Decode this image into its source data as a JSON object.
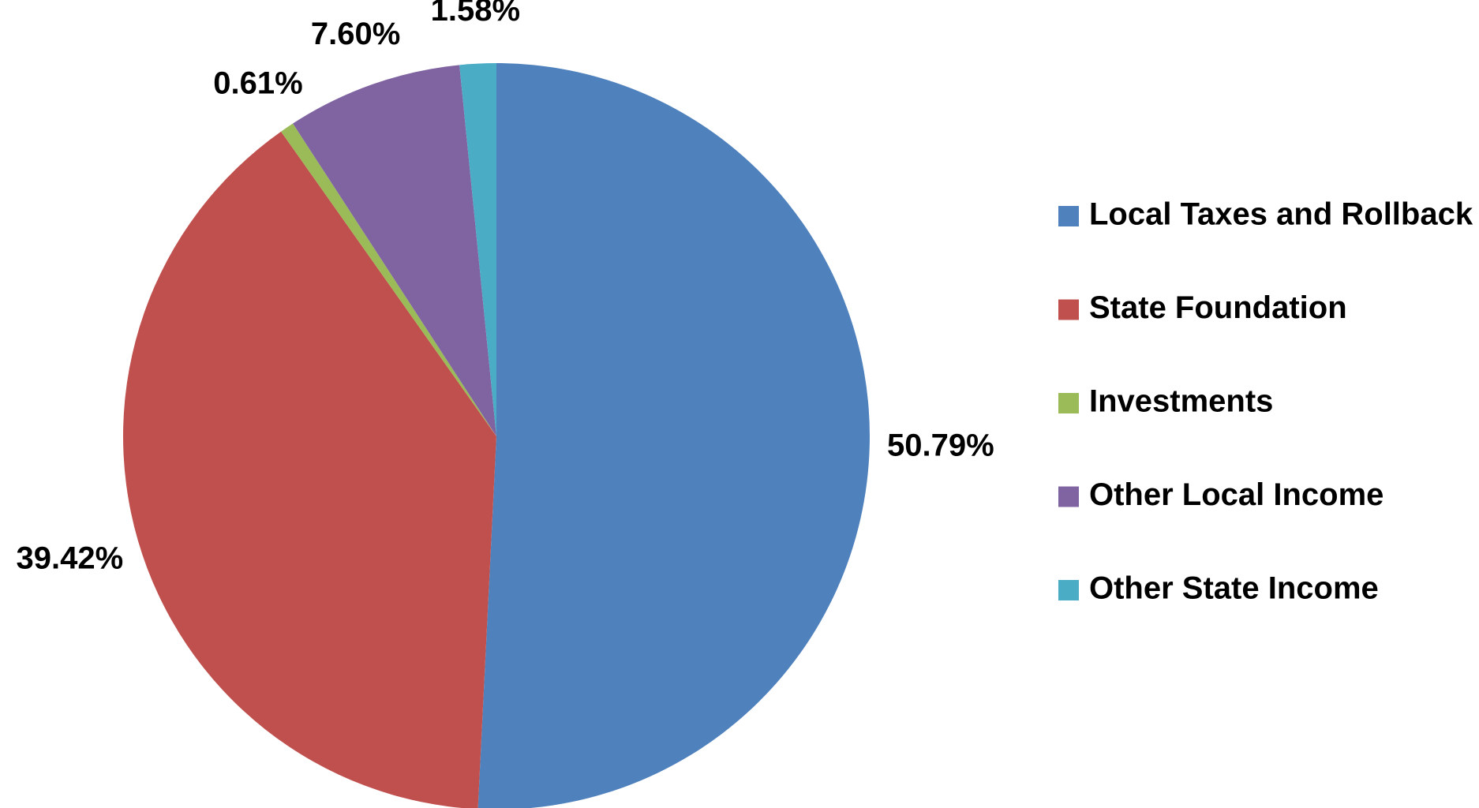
{
  "chart_data": {
    "type": "pie",
    "categories": [
      "Local Taxes and Rollback",
      "State Foundation",
      "Investments",
      "Other Local Income",
      "Other State Income"
    ],
    "values": [
      50.79,
      39.42,
      0.61,
      7.6,
      1.58
    ],
    "value_labels": [
      "50.79%",
      "39.42%",
      "0.61%",
      "7.60%",
      "1.58%"
    ],
    "colors": [
      "#4f81bd",
      "#c0504d",
      "#9bbb59",
      "#8064a2",
      "#4bacc6"
    ],
    "legend": "right"
  }
}
